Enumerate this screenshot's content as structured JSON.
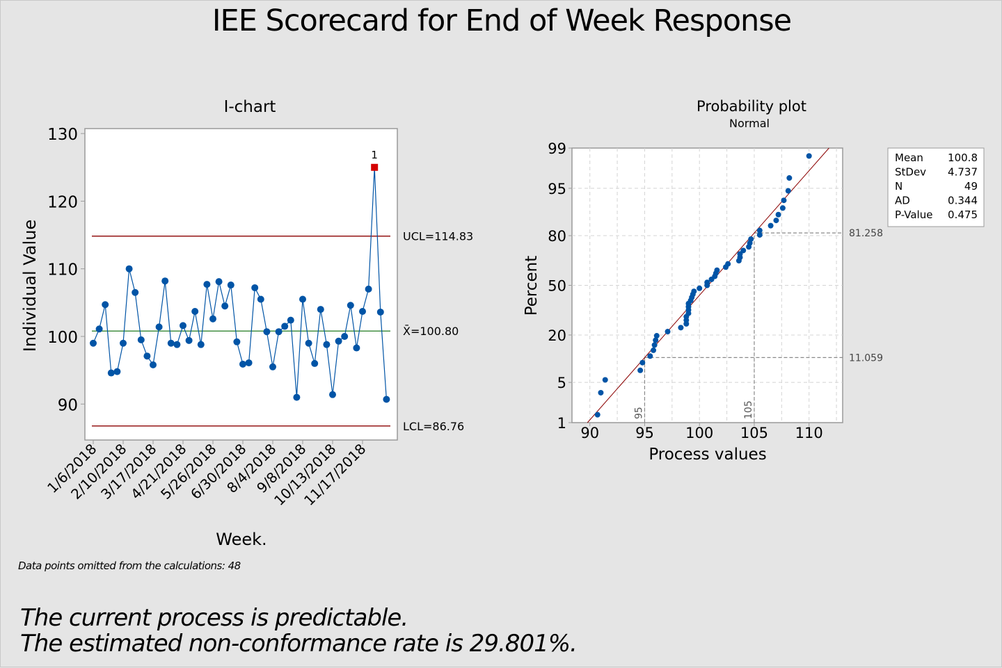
{
  "title": "IEE Scorecard for End of Week Response",
  "footer": {
    "omitted_note": "Data points omitted from the calculations: 48",
    "conclusion_line1": "The current process is predictable.",
    "conclusion_line2": "The estimated non-conformance rate is 29.801%."
  },
  "colors": {
    "background": "#e5e5e5",
    "point": "#0054a6",
    "out_of_control": "#d40000",
    "control_limit": "#8b0000",
    "center_line": "#1f7a1f",
    "fit_line": "#8b0000",
    "grid": "#d4d4d4",
    "reference": "#8a8a8a"
  },
  "chart_data": [
    {
      "type": "line",
      "title": "I-chart",
      "xlabel": "Week.",
      "ylabel": "Individual Value",
      "ylim": [
        86,
        130
      ],
      "yticks": [
        90,
        100,
        110,
        120,
        130
      ],
      "x_tick_labels": [
        "1/6/2018",
        "2/10/2018",
        "3/17/2018",
        "4/21/2018",
        "5/26/2018",
        "6/30/2018",
        "8/4/2018",
        "9/8/2018",
        "10/13/2018",
        "11/17/2018"
      ],
      "x_tick_every": 5,
      "values": [
        99.0,
        101.1,
        104.7,
        94.6,
        94.8,
        99.0,
        110.0,
        106.5,
        99.5,
        97.1,
        95.8,
        101.4,
        108.2,
        99.0,
        98.8,
        101.6,
        99.4,
        103.7,
        98.8,
        107.7,
        102.6,
        108.1,
        104.5,
        107.6,
        99.2,
        95.9,
        96.1,
        107.2,
        105.5,
        100.7,
        95.5,
        100.7,
        101.5,
        102.4,
        91.0,
        105.5,
        99.0,
        96.0,
        104.0,
        98.8,
        91.4,
        99.3,
        100.0,
        104.6,
        98.3,
        103.7,
        107.0,
        125.0,
        103.6,
        90.7
      ],
      "out_of_control": [
        {
          "index": 48,
          "label": "1"
        }
      ],
      "ucl": 114.83,
      "center": 100.8,
      "lcl": 86.76,
      "ucl_label": "UCL=114.83",
      "center_label": "X̄=100.80",
      "lcl_label": "LCL=86.76",
      "grid": false
    },
    {
      "type": "scatter",
      "title": "Probability plot",
      "subtitle": "Normal",
      "xlabel": "Process values",
      "ylabel": "Percent",
      "xlim": [
        88.5,
        113.2
      ],
      "xticks": [
        90,
        95,
        100,
        105,
        110
      ],
      "x_gridlines": [
        90,
        92.5,
        95,
        97.5,
        100,
        102.5,
        105,
        107.5,
        110,
        112.5
      ],
      "ylim_percent": [
        1,
        99
      ],
      "yticks": [
        1,
        5,
        20,
        50,
        80,
        95,
        99
      ],
      "grid": true,
      "excluded_index": 48,
      "stats": [
        {
          "label": "Mean",
          "value": "100.8"
        },
        {
          "label": "StDev",
          "value": "4.737"
        },
        {
          "label": "N",
          "value": "49"
        },
        {
          "label": "AD",
          "value": "0.344"
        },
        {
          "label": "P-Value",
          "value": "0.475"
        }
      ],
      "mean": 100.8,
      "stdev": 4.737,
      "reference_lines": [
        {
          "x": 95,
          "x_label": "95",
          "percent": 11.059,
          "percent_label": "11.059"
        },
        {
          "x": 105,
          "x_label": "105",
          "percent": 81.258,
          "percent_label": "81.258"
        }
      ],
      "legend": "right"
    }
  ]
}
